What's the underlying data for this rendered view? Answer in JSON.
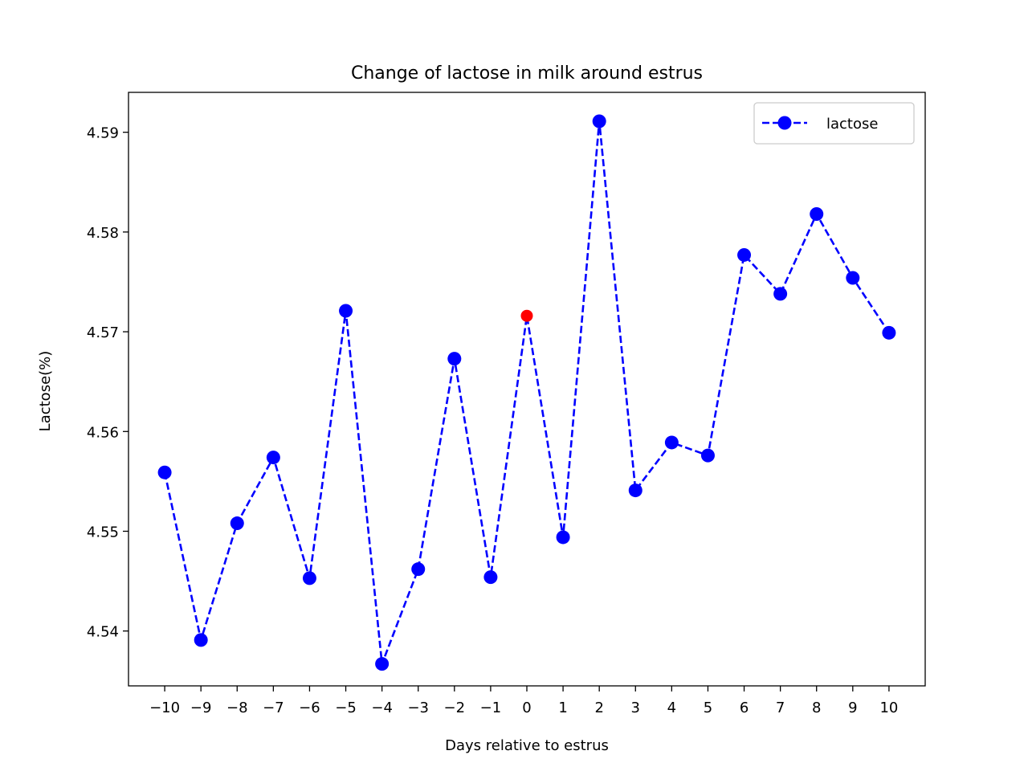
{
  "chart_data": {
    "type": "line",
    "title": "Change of lactose in milk around estrus",
    "xlabel": "Days relative to estrus",
    "ylabel": "Lactose(%)",
    "x": [
      -10,
      -9,
      -8,
      -7,
      -6,
      -5,
      -4,
      -3,
      -2,
      -1,
      0,
      1,
      2,
      3,
      4,
      5,
      6,
      7,
      8,
      9,
      10
    ],
    "x_tick_labels": [
      "−10",
      "−9",
      "−8",
      "−7",
      "−6",
      "−5",
      "−4",
      "−3",
      "−2",
      "−1",
      "0",
      "1",
      "2",
      "3",
      "4",
      "5",
      "6",
      "7",
      "8",
      "9",
      "10"
    ],
    "y_ticks": [
      4.54,
      4.55,
      4.56,
      4.57,
      4.58,
      4.59
    ],
    "y_tick_labels": [
      "4.54",
      "4.55",
      "4.56",
      "4.57",
      "4.58",
      "4.59"
    ],
    "xlim": [
      -11,
      11
    ],
    "ylim": [
      4.5345,
      4.594
    ],
    "grid": false,
    "legend_position": "top-right",
    "series": [
      {
        "name": "lactose",
        "color": "#0000ff",
        "line_style": "dashed",
        "marker": "circle",
        "values": [
          4.5559,
          4.5391,
          4.5508,
          4.5574,
          4.5453,
          4.5721,
          4.5367,
          4.5462,
          4.5673,
          4.5454,
          4.5716,
          4.5494,
          4.5911,
          4.5541,
          4.5589,
          4.5576,
          4.5777,
          4.5738,
          4.5818,
          4.5754,
          4.5699
        ]
      }
    ],
    "highlight": {
      "x": 0,
      "color": "#ff0000"
    }
  }
}
